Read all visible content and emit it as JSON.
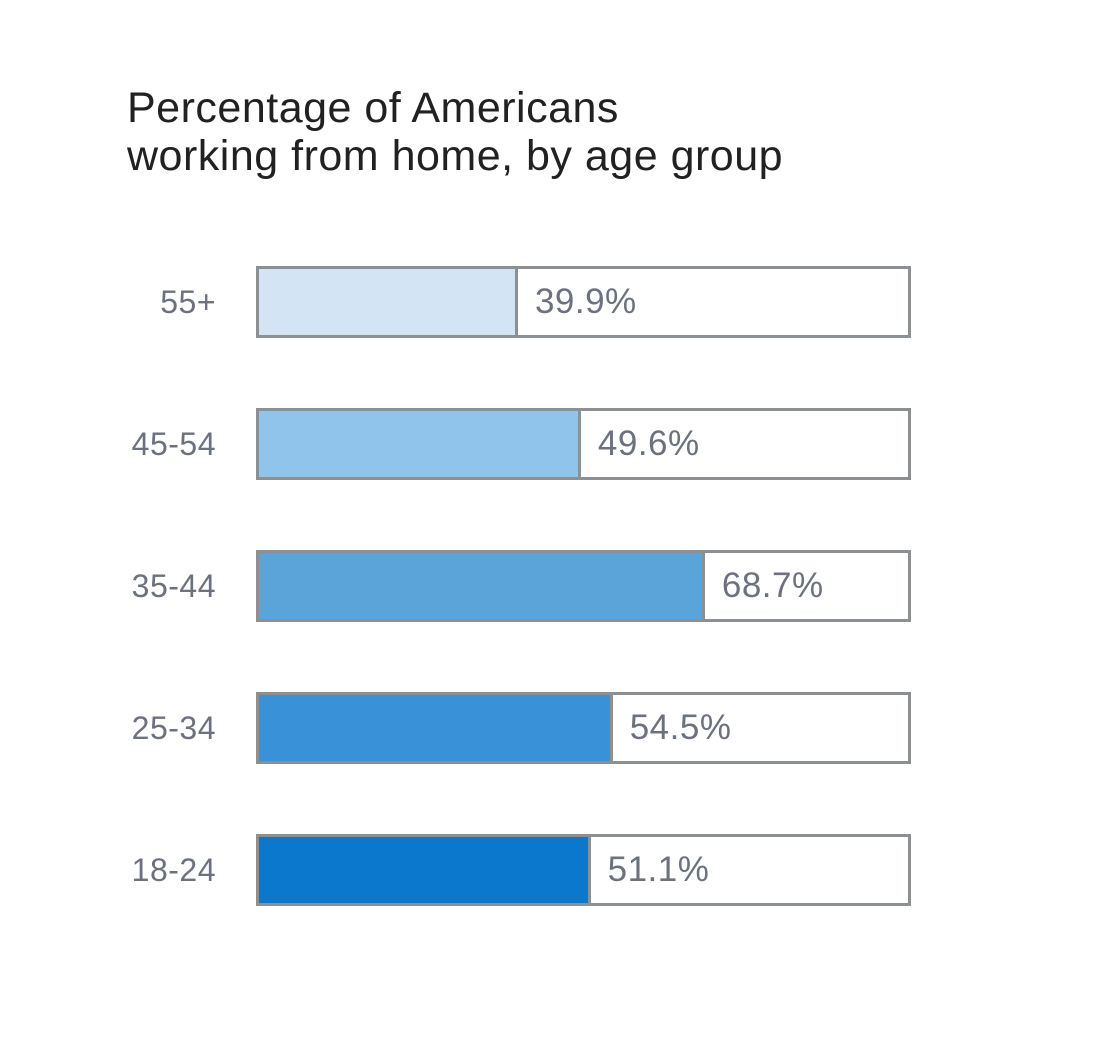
{
  "title": {
    "line1": "Percentage of Americans",
    "line2": "working from home, by age group"
  },
  "colors": {
    "title_text": "#212121",
    "label_text": "#6b717d",
    "track_border": "#8d9092",
    "background": "#ffffff"
  },
  "chart_data": {
    "type": "bar",
    "orientation": "horizontal",
    "title": "Percentage of Americans working from home, by age group",
    "xlabel": "",
    "ylabel": "",
    "xlim": [
      0,
      100
    ],
    "grid": false,
    "legend": false,
    "categories": [
      "55+",
      "45-54",
      "35-44",
      "25-34",
      "18-24"
    ],
    "values": [
      39.9,
      49.6,
      68.7,
      54.5,
      51.1
    ],
    "value_labels": [
      "39.9%",
      "49.6%",
      "68.7%",
      "54.5%",
      "51.1%"
    ],
    "bar_colors": [
      "#d3e4f5",
      "#90c4ea",
      "#5ba4da",
      "#3991d7",
      "#0c78cd"
    ]
  }
}
